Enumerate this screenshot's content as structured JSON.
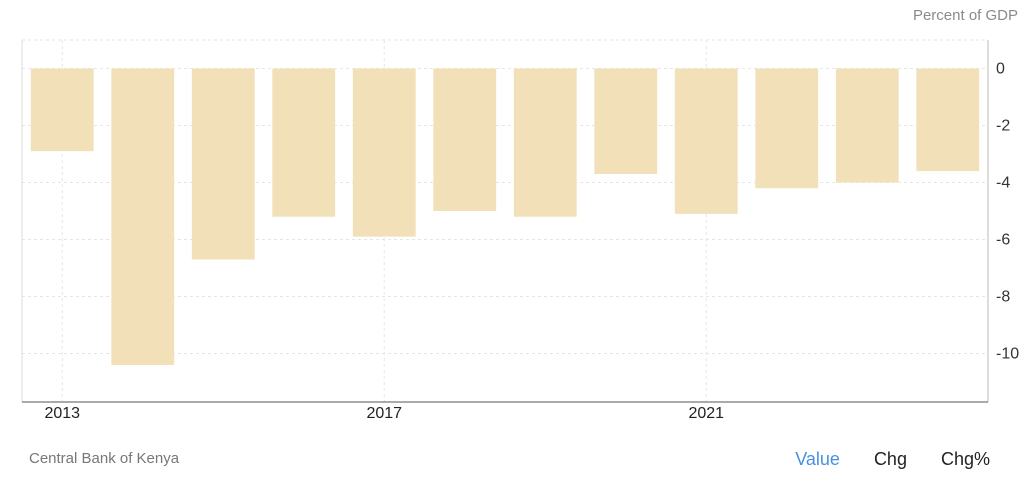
{
  "unit_label": "Percent of GDP",
  "source": "Central Bank of Kenya",
  "toggles": {
    "value": "Value",
    "chg": "Chg",
    "chg_pct": "Chg%"
  },
  "colors": {
    "bar": "#f2e0b8",
    "grid": "#e6e6e6",
    "axis": "#555555",
    "active_toggle": "#4a90e2"
  },
  "chart_data": {
    "type": "bar",
    "title": "",
    "xlabel": "",
    "ylabel": "Percent of GDP",
    "categories": [
      "2013",
      "2014",
      "2015",
      "2016",
      "2017",
      "2018",
      "2019",
      "2020",
      "2021",
      "2022",
      "2023",
      "2024"
    ],
    "x_tick_labels": [
      "2013",
      "2017",
      "2021"
    ],
    "values": [
      -2.9,
      -10.4,
      -6.7,
      -5.2,
      -5.9,
      -5.0,
      -5.2,
      -3.7,
      -5.1,
      -4.2,
      -4.0,
      -3.6
    ],
    "ylim": [
      -11.7,
      1.0
    ],
    "y_ticks": [
      0,
      -2,
      -4,
      -6,
      -8,
      -10
    ],
    "grid": true
  }
}
